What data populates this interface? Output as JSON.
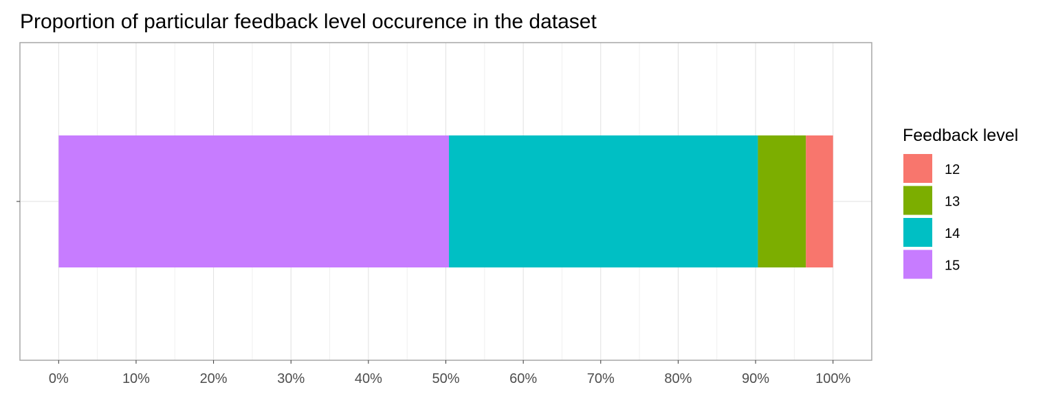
{
  "chart_data": {
    "type": "bar",
    "orientation": "horizontal",
    "stacked": true,
    "title": "Proportion of particular feedback level occurence in the dataset",
    "xlabel": "",
    "ylabel": "",
    "xlim": [
      -0.05,
      1.05
    ],
    "xticks": [
      0,
      0.1,
      0.2,
      0.3,
      0.4,
      0.5,
      0.6,
      0.7,
      0.8,
      0.9,
      1.0
    ],
    "xtick_labels": [
      "0%",
      "10%",
      "20%",
      "30%",
      "40%",
      "50%",
      "60%",
      "70%",
      "80%",
      "90%",
      "100%"
    ],
    "grid": true,
    "legend": {
      "title": "Feedback level",
      "position": "right",
      "entries": [
        "12",
        "13",
        "14",
        "15"
      ]
    },
    "series": [
      {
        "name": "15",
        "value": 0.504,
        "color": "#C77CFF"
      },
      {
        "name": "14",
        "value": 0.399,
        "color": "#00BFC4"
      },
      {
        "name": "13",
        "value": 0.062,
        "color": "#7CAE00"
      },
      {
        "name": "12",
        "value": 0.035,
        "color": "#F8766D"
      }
    ]
  }
}
